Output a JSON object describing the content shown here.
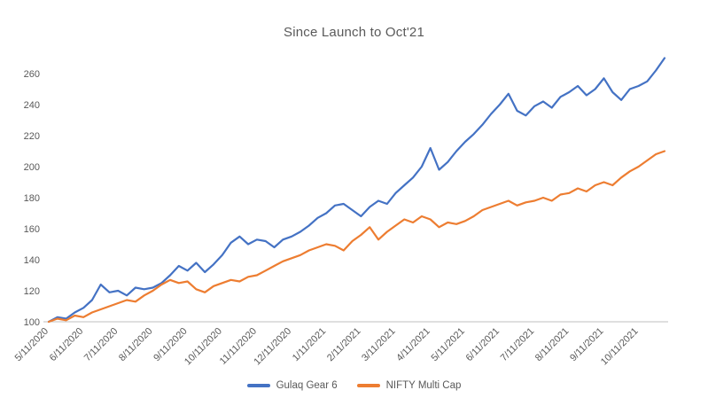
{
  "chart_data": {
    "type": "line",
    "title": "Since Launch to Oct'21",
    "xlabel": "",
    "ylabel": "",
    "ylim": [
      100,
      270
    ],
    "yticks": [
      100,
      120,
      140,
      160,
      180,
      200,
      220,
      240,
      260
    ],
    "grid": false,
    "legend_position": "bottom",
    "x_tick_labels": [
      "5/11/2020",
      "6/11/2020",
      "7/11/2020",
      "8/11/2020",
      "9/11/2020",
      "10/11/2020",
      "11/11/2020",
      "12/11/2020",
      "1/11/2021",
      "2/11/2021",
      "3/11/2021",
      "4/11/2021",
      "5/11/2021",
      "6/11/2021",
      "7/11/2021",
      "8/11/2021",
      "9/11/2021",
      "10/11/2021"
    ],
    "x_points_per_tick_interval": 4,
    "axis_color": "#BFBFBF",
    "tick_label_color": "#595959",
    "series": [
      {
        "name": "Gulaq Gear 6",
        "color": "#4472C4",
        "values": [
          100,
          103,
          102,
          106,
          109,
          114,
          124,
          119,
          120,
          117,
          122,
          121,
          122,
          125,
          130,
          136,
          133,
          138,
          132,
          137,
          143,
          151,
          155,
          150,
          153,
          152,
          148,
          153,
          155,
          158,
          162,
          167,
          170,
          175,
          176,
          172,
          168,
          174,
          178,
          176,
          183,
          188,
          193,
          200,
          212,
          198,
          203,
          210,
          216,
          221,
          227,
          234,
          240,
          247,
          236,
          233,
          239,
          242,
          238,
          245,
          248,
          252,
          246,
          250,
          257,
          248,
          243,
          250,
          252,
          255,
          262,
          270
        ]
      },
      {
        "name": "NIFTY Multi Cap",
        "color": "#ED7D31",
        "values": [
          100,
          102,
          101,
          104,
          103,
          106,
          108,
          110,
          112,
          114,
          113,
          117,
          120,
          124,
          127,
          125,
          126,
          121,
          119,
          123,
          125,
          127,
          126,
          129,
          130,
          133,
          136,
          139,
          141,
          143,
          146,
          148,
          150,
          149,
          146,
          152,
          156,
          161,
          153,
          158,
          162,
          166,
          164,
          168,
          166,
          161,
          164,
          163,
          165,
          168,
          172,
          174,
          176,
          178,
          175,
          177,
          178,
          180,
          178,
          182,
          183,
          186,
          184,
          188,
          190,
          188,
          193,
          197,
          200,
          204,
          208,
          210
        ]
      }
    ]
  }
}
